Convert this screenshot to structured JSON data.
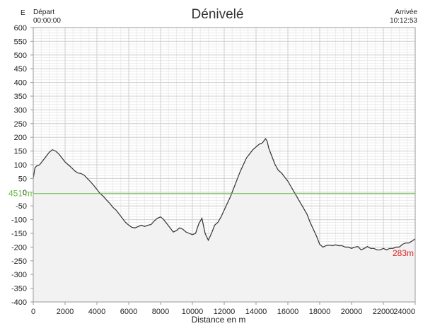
{
  "header": {
    "unit_label": "E",
    "start_label": "Départ",
    "start_time": "00:00:00",
    "end_label": "Arrivée",
    "end_time": "10:12:53"
  },
  "chart_data": {
    "type": "area",
    "title": "Dénivelé",
    "xlabel": "Distance en m",
    "ylabel": "",
    "xlim": [
      0,
      24000
    ],
    "ylim": [
      -400,
      600
    ],
    "xticks": [
      0,
      2000,
      4000,
      6000,
      8000,
      10000,
      12000,
      14000,
      16000,
      18000,
      20000,
      22000,
      24000
    ],
    "yticks": [
      600,
      550,
      500,
      450,
      400,
      350,
      300,
      250,
      200,
      150,
      100,
      50,
      0,
      -50,
      -100,
      -150,
      -200,
      -250,
      -300,
      -350,
      -400
    ],
    "grid": true,
    "reference_line": {
      "y": -5,
      "label": "451 m",
      "color": "#66bb44"
    },
    "end_label": {
      "text": "283m",
      "color": "#dd2222"
    },
    "fill_color": "#f2f2f2",
    "line_color": "#333333",
    "series": [
      {
        "x": [
          0,
          100,
          200,
          400,
          600,
          800,
          1000,
          1200,
          1400,
          1600,
          1800,
          2000,
          2200,
          2400,
          2600,
          2800,
          3000,
          3200,
          3400,
          3600,
          3800,
          4000,
          4200,
          4400,
          4600,
          4800,
          5000,
          5200,
          5400,
          5600,
          5800,
          6000,
          6200,
          6400,
          6600,
          6800,
          7000,
          7200,
          7400,
          7600,
          7800,
          8000,
          8200,
          8400,
          8600,
          8800,
          9000,
          9200,
          9400,
          9600,
          9800,
          10000,
          10200,
          10400,
          10600,
          10800,
          11000,
          11200,
          11400,
          11600,
          11800,
          12000,
          12200,
          12400,
          12600,
          12800,
          13000,
          13200,
          13400,
          13600,
          13800,
          14000,
          14200,
          14400,
          14600,
          14700,
          14800,
          15000,
          15200,
          15400,
          15600,
          15800,
          16000,
          16200,
          16400,
          16600,
          16800,
          17000,
          17200,
          17400,
          17600,
          17800,
          18000,
          18200,
          18400,
          18600,
          18800,
          19000,
          19200,
          19400,
          19600,
          19800,
          20000,
          20200,
          20400,
          20600,
          20800,
          21000,
          21200,
          21400,
          21600,
          21800,
          22000,
          22200,
          22400,
          22600,
          22800,
          23000,
          23200,
          23400,
          23600,
          23800,
          24000
        ],
        "y": [
          50,
          88,
          95,
          100,
          115,
          130,
          145,
          155,
          150,
          140,
          125,
          110,
          100,
          90,
          78,
          70,
          68,
          62,
          50,
          38,
          25,
          10,
          -5,
          -15,
          -28,
          -40,
          -55,
          -65,
          -80,
          -95,
          -110,
          -120,
          -128,
          -130,
          -125,
          -120,
          -125,
          -120,
          -118,
          -105,
          -95,
          -90,
          -100,
          -115,
          -130,
          -145,
          -140,
          -130,
          -135,
          -145,
          -150,
          -155,
          -150,
          -115,
          -95,
          -150,
          -175,
          -150,
          -120,
          -110,
          -90,
          -65,
          -40,
          -15,
          15,
          45,
          75,
          100,
          125,
          140,
          155,
          165,
          175,
          180,
          195,
          185,
          160,
          130,
          100,
          80,
          70,
          55,
          40,
          20,
          0,
          -20,
          -40,
          -60,
          -80,
          -110,
          -135,
          -160,
          -190,
          -200,
          -195,
          -193,
          -195,
          -192,
          -195,
          -195,
          -200,
          -200,
          -205,
          -200,
          -198,
          -210,
          -205,
          -198,
          -205,
          -205,
          -210,
          -210,
          -205,
          -210,
          -205,
          -205,
          -200,
          -200,
          -190,
          -185,
          -185,
          -178,
          -170
        ]
      }
    ]
  }
}
